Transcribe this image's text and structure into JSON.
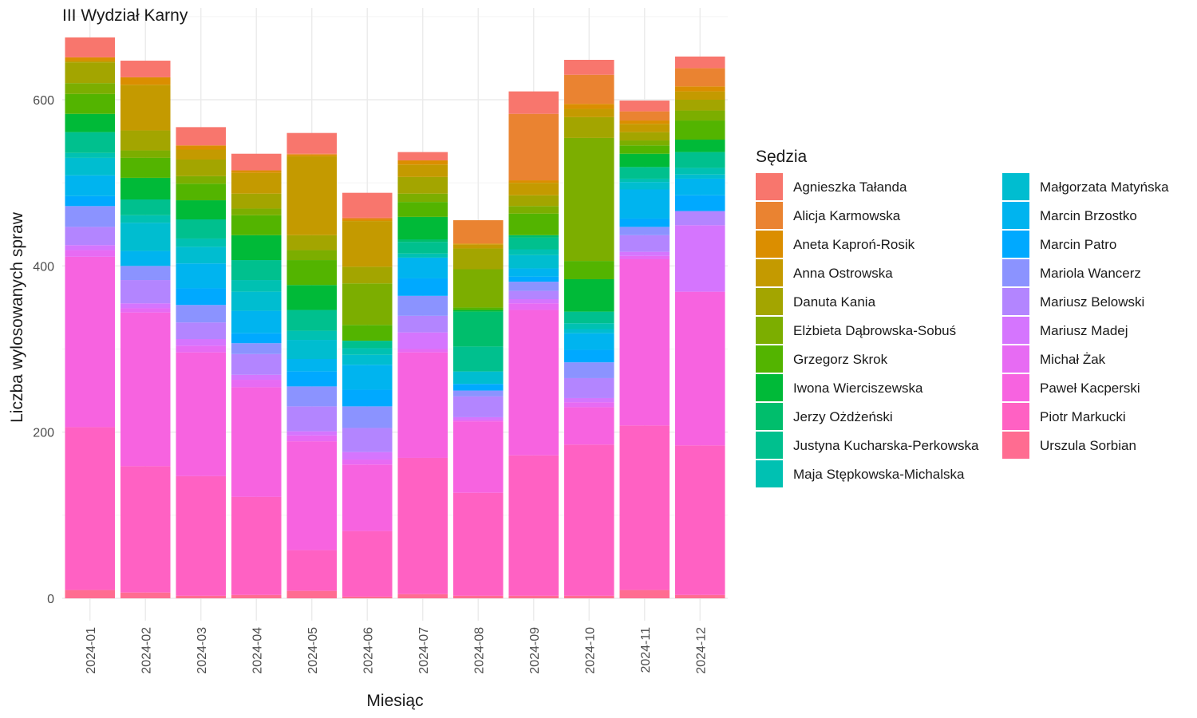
{
  "chart_data": {
    "type": "bar",
    "stacked": true,
    "title": "III Wydział Karny",
    "xlabel": "Miesiąc",
    "ylabel": "Liczba wylosowanych spraw",
    "ylim": [
      0,
      675
    ],
    "y_ticks": [
      0,
      200,
      400,
      600
    ],
    "grid": true,
    "legend_title": "Sędzia",
    "legend_position": "right",
    "categories": [
      "2024-01",
      "2024-02",
      "2024-03",
      "2024-04",
      "2024-05",
      "2024-06",
      "2024-07",
      "2024-08",
      "2024-09",
      "2024-10",
      "2024-11",
      "2024-12"
    ],
    "series": [
      {
        "name": "Urszula Sorbian",
        "color": "#FF6C91",
        "values": [
          10,
          7,
          3,
          4,
          9,
          2,
          5,
          3,
          3,
          3,
          10,
          4
        ]
      },
      {
        "name": "Piotr Markucki",
        "color": "#FF61C3",
        "values": [
          196,
          152,
          144,
          118,
          49,
          79,
          164,
          124,
          169,
          182,
          198,
          180
        ]
      },
      {
        "name": "Paweł Kacperski",
        "color": "#F763E0",
        "values": [
          205,
          185,
          149,
          132,
          131,
          80,
          127,
          86,
          175,
          45,
          200,
          185
        ]
      },
      {
        "name": "Michał Żak",
        "color": "#E76BF3",
        "values": [
          8,
          5,
          8,
          9,
          7,
          6,
          4,
          2,
          8,
          6,
          4,
          0
        ]
      },
      {
        "name": "Mariusz Madej",
        "color": "#D575FE",
        "values": [
          6,
          6,
          8,
          6,
          5,
          9,
          20,
          3,
          5,
          5,
          5,
          80
        ]
      },
      {
        "name": "Mariusz Belowski",
        "color": "#B385FF",
        "values": [
          22,
          28,
          20,
          25,
          30,
          29,
          20,
          25,
          10,
          24,
          20,
          17
        ]
      },
      {
        "name": "Mariola Wancerz",
        "color": "#8B93FF",
        "values": [
          25,
          17,
          21,
          13,
          24,
          26,
          24,
          7,
          11,
          19,
          10,
          0
        ]
      },
      {
        "name": "Marcin Patro",
        "color": "#00A9FF",
        "values": [
          12,
          0,
          20,
          12,
          18,
          20,
          21,
          8,
          6,
          15,
          10,
          19
        ]
      },
      {
        "name": "Marcin Brzostko",
        "color": "#00B4EF",
        "values": [
          25,
          18,
          30,
          27,
          15,
          30,
          25,
          0,
          10,
          20,
          35,
          20
        ]
      },
      {
        "name": "Małgorzata Matyńska",
        "color": "#00BDD0",
        "values": [
          21,
          34,
          20,
          23,
          23,
          12,
          0,
          15,
          16,
          5,
          9,
          5
        ]
      },
      {
        "name": "Maja Stępkowska-Michalska",
        "color": "#00C1B2",
        "values": [
          6,
          9,
          10,
          14,
          11,
          8,
          5,
          0,
          7,
          7,
          4,
          8
        ]
      },
      {
        "name": "Justyna Kucharska-Perkowska",
        "color": "#00C08E",
        "values": [
          25,
          19,
          23,
          24,
          25,
          9,
          14,
          30,
          14,
          14,
          14,
          19
        ]
      },
      {
        "name": "Jerzy Ożdżeński",
        "color": "#00BE6C",
        "values": [
          0,
          0,
          0,
          0,
          0,
          0,
          3,
          42,
          3,
          0,
          0,
          0
        ]
      },
      {
        "name": "Iwona Wierciszewska",
        "color": "#00BA38",
        "values": [
          22,
          26,
          23,
          30,
          30,
          0,
          27,
          2,
          0,
          39,
          16,
          15
        ]
      },
      {
        "name": "Grzegorz Skrok",
        "color": "#53B400",
        "values": [
          24,
          24,
          20,
          24,
          30,
          19,
          18,
          3,
          26,
          22,
          10,
          23
        ]
      },
      {
        "name": "Elżbieta Dąbrowska-Sobuś",
        "color": "#7CAE00",
        "values": [
          13,
          9,
          9,
          8,
          12,
          50,
          10,
          46,
          9,
          148,
          6,
          12
        ]
      },
      {
        "name": "Danuta Kania",
        "color": "#A3A500",
        "values": [
          25,
          24,
          20,
          18,
          18,
          20,
          20,
          25,
          13,
          25,
          10,
          13
        ]
      },
      {
        "name": "Anna Ostrowska",
        "color": "#C49A00",
        "values": [
          2,
          55,
          12,
          25,
          95,
          55,
          15,
          5,
          15,
          10,
          10,
          10
        ]
      },
      {
        "name": "Aneta Kaproń-Rosik",
        "color": "#DB8E00",
        "values": [
          4,
          9,
          5,
          3,
          2,
          2,
          5,
          1,
          3,
          6,
          4,
          6
        ]
      },
      {
        "name": "Alicja Karmowska",
        "color": "#EA8331",
        "values": [
          0,
          0,
          0,
          0,
          1,
          2,
          0,
          28,
          80,
          35,
          11,
          22
        ]
      },
      {
        "name": "Agnieszka Tałanda",
        "color": "#F8766D",
        "values": [
          24,
          20,
          22,
          20,
          25,
          30,
          10,
          0,
          27,
          18,
          13,
          14
        ]
      }
    ]
  },
  "legend_order": [
    "Agnieszka Tałanda",
    "Alicja Karmowska",
    "Aneta Kaproń-Rosik",
    "Anna Ostrowska",
    "Danuta Kania",
    "Elżbieta Dąbrowska-Sobuś",
    "Grzegorz Skrok",
    "Iwona Wierciszewska",
    "Jerzy Ożdżeński",
    "Justyna Kucharska-Perkowska",
    "Maja Stępkowska-Michalska",
    "Małgorzata Matyńska",
    "Marcin Brzostko",
    "Marcin Patro",
    "Mariola Wancerz",
    "Mariusz Belowski",
    "Mariusz Madej",
    "Michał Żak",
    "Paweł Kacperski",
    "Piotr Markucki",
    "Urszula Sorbian"
  ]
}
